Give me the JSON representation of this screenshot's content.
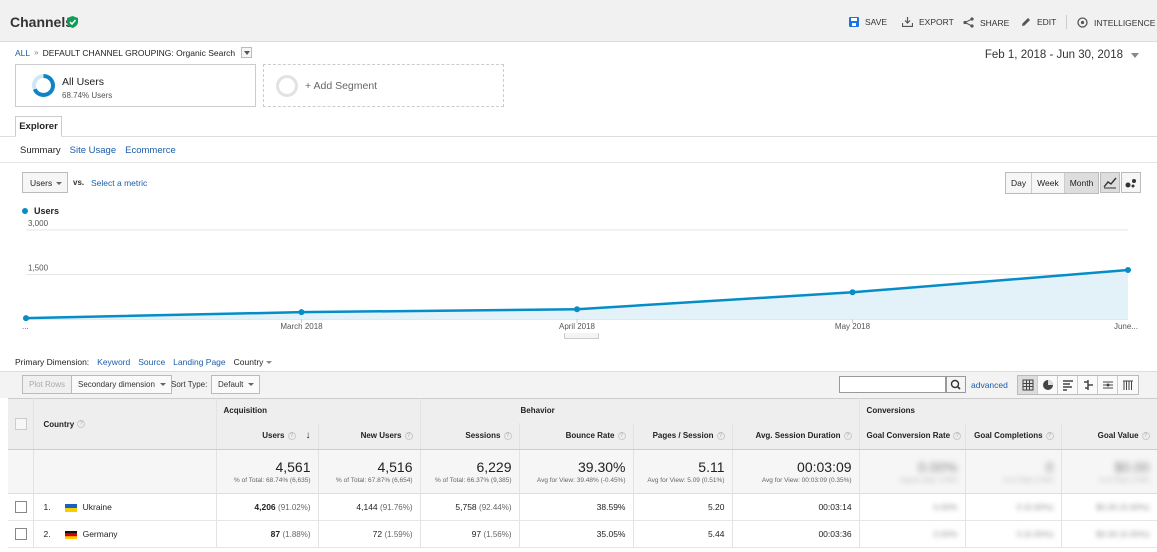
{
  "header": {
    "title": "Channels",
    "actions": {
      "save": "SAVE",
      "export": "EXPORT",
      "share": "SHARE",
      "edit": "EDIT",
      "intelligence": "INTELLIGENCE"
    }
  },
  "breadcrumb": {
    "all": "ALL",
    "separator": "»",
    "current": "DEFAULT CHANNEL GROUPING: Organic Search"
  },
  "date_range": "Feb 1, 2018 - Jun 30, 2018",
  "segments": {
    "active": {
      "name": "All Users",
      "percent": "68.74% Users"
    },
    "add": "+ Add Segment"
  },
  "tabs": {
    "explorer": "Explorer"
  },
  "subtabs": [
    "Summary",
    "Site Usage",
    "Ecommerce"
  ],
  "metric": {
    "selected": "Users",
    "vs": "vs.",
    "select_metric": "Select a metric"
  },
  "period": [
    "Day",
    "Week",
    "Month"
  ],
  "period_selected": "Month",
  "chart_data": {
    "type": "area",
    "series": [
      {
        "name": "Users",
        "values": [
          30,
          230,
          330,
          900,
          1650
        ]
      }
    ],
    "x": [
      "...",
      "March 2018",
      "April 2018",
      "May 2018",
      "June..."
    ],
    "y_ticks": [
      "3,000",
      "1,500"
    ],
    "ylim": [
      0,
      3000
    ],
    "color": "#058dc7",
    "fill": "#e3f1f9"
  },
  "primary_dimension": {
    "label": "Primary Dimension:",
    "options": [
      "Keyword",
      "Source",
      "Landing Page"
    ],
    "current": "Country"
  },
  "table_toolbar": {
    "plot_rows": "Plot Rows",
    "secondary": "Secondary dimension",
    "sort_label": "Sort Type:",
    "sort": "Default",
    "advanced": "advanced"
  },
  "table": {
    "groups": {
      "acquisition": "Acquisition",
      "behavior": "Behavior",
      "conversions": "Conversions"
    },
    "dim_header": "Country",
    "columns": [
      "Users",
      "New Users",
      "Sessions",
      "Bounce Rate",
      "Pages / Session",
      "Avg. Session Duration",
      "Goal Conversion Rate",
      "Goal Completions",
      "Goal Value"
    ],
    "totals": {
      "users": "4,561",
      "users_sub": "% of Total: 68.74% (6,635)",
      "new_users": "4,516",
      "new_users_sub": "% of Total: 67.87% (6,654)",
      "sessions": "6,229",
      "sessions_sub": "% of Total: 66.37% (9,385)",
      "bounce": "39.30%",
      "bounce_sub": "Avg for View: 39.48% (-0.45%)",
      "pps": "5.11",
      "pps_sub": "Avg for View: 5.09 (0.51%)",
      "dur": "00:03:09",
      "dur_sub": "Avg for View: 00:03:09 (0.35%)"
    },
    "rows": [
      {
        "rank": "1.",
        "country": "Ukraine",
        "users": "4,206",
        "users_pct": "(91.02%)",
        "new_users": "4,144",
        "new_users_pct": "(91.76%)",
        "sessions": "5,758",
        "sessions_pct": "(92.44%)",
        "bounce": "38.59%",
        "pps": "5.20",
        "dur": "00:03:14"
      },
      {
        "rank": "2.",
        "country": "Germany",
        "users": "87",
        "users_pct": "(1.88%)",
        "new_users": "72",
        "new_users_pct": "(1.59%)",
        "sessions": "97",
        "sessions_pct": "(1.56%)",
        "bounce": "35.05%",
        "pps": "5.44",
        "dur": "00:03:36"
      }
    ]
  }
}
